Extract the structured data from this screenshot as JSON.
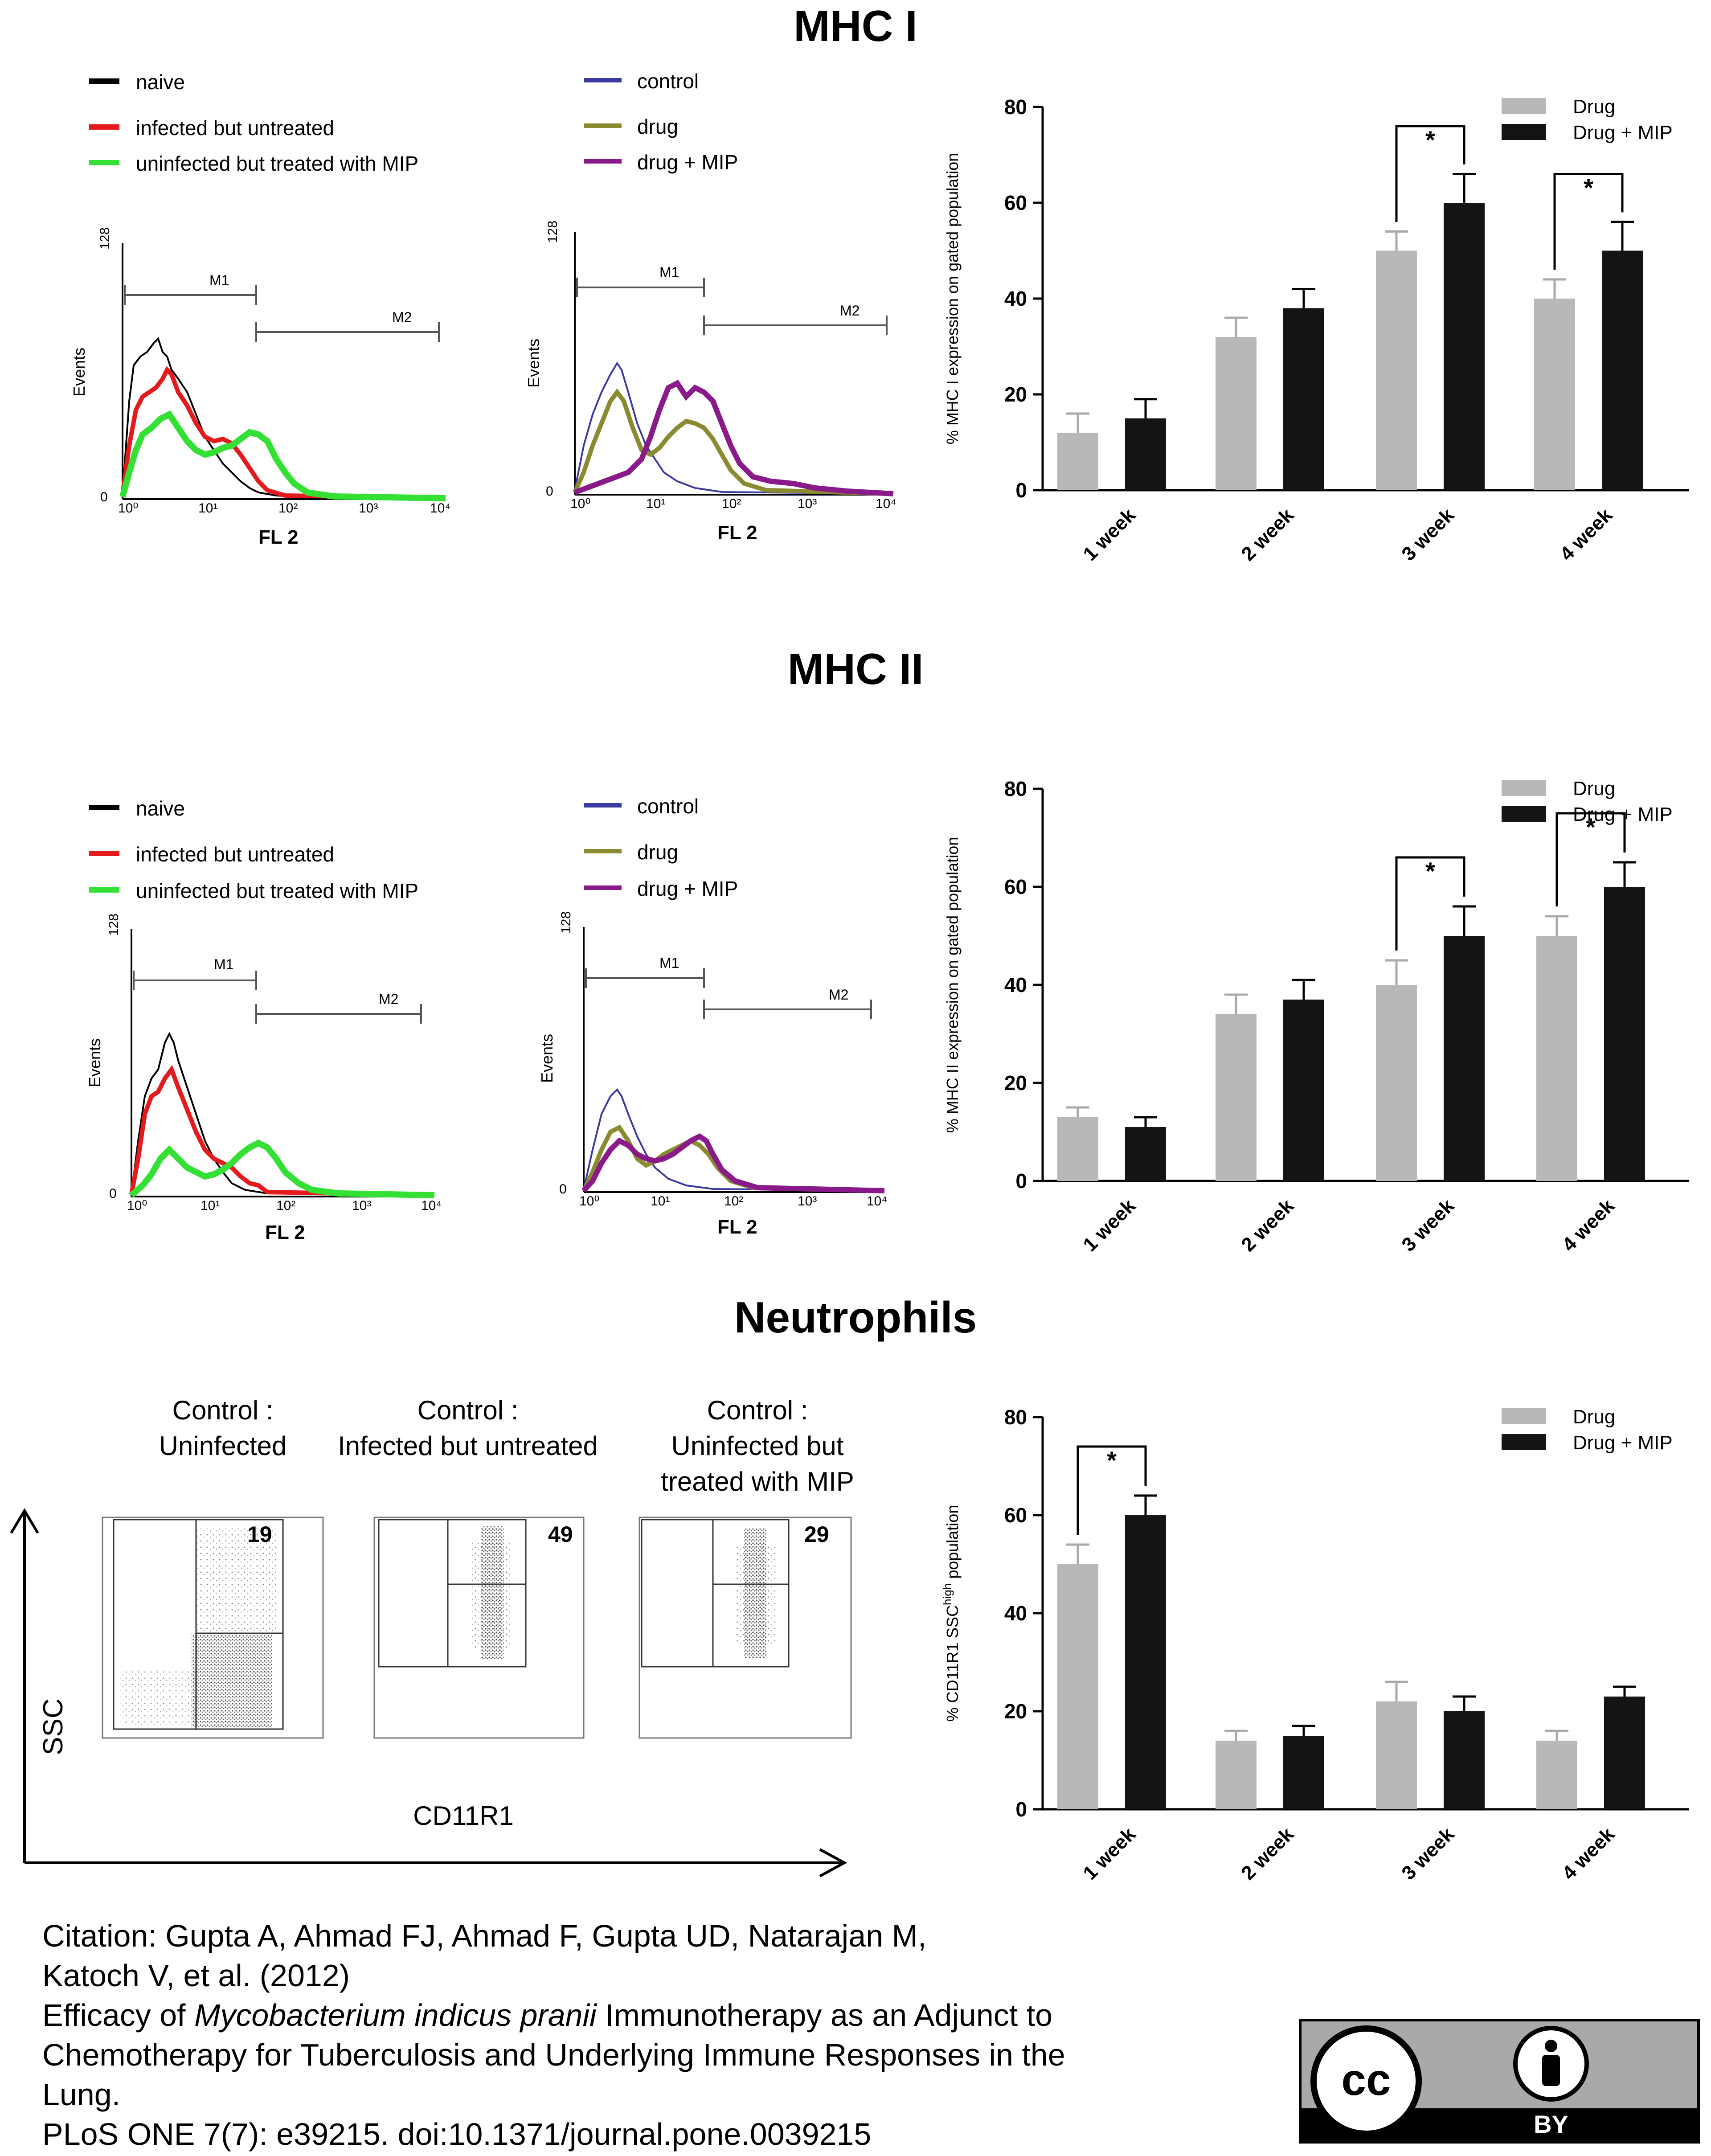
{
  "sections": {
    "mhc1": "MHC I",
    "mhc2": "MHC II",
    "neutrophils": "Neutrophils"
  },
  "colors": {
    "naive": "#000000",
    "infected": "#e41a1c",
    "uninfected_mip": "#33e033",
    "control": "#3a3aa0",
    "drug": "#8a8a30",
    "drug_mip": "#8a1a8a",
    "bar_drug": "#b8b8b8",
    "bar_drug_mip": "#141414"
  },
  "histograms": {
    "legend_left": [
      "naive",
      "infected but untreated",
      "uninfected but treated with MIP"
    ],
    "legend_right": [
      "control",
      "drug",
      "drug + MIP"
    ],
    "x_label": "FL 2",
    "y_label": "Events",
    "y_max_tick": "128",
    "y_min_tick": "0",
    "x_ticks": [
      "10⁰",
      "10¹",
      "10²",
      "10³",
      "10⁴"
    ],
    "gate1": "M1",
    "gate2": "M2"
  },
  "neutrophils": {
    "panels": [
      {
        "title_line1": "Control :",
        "title_line2": "Uninfected",
        "value": "19"
      },
      {
        "title_line1": "Control :",
        "title_line2": "Infected but untreated",
        "value": "49"
      },
      {
        "title_line1": "Control :",
        "title_line2": "Uninfected but",
        "title_line3": "treated  with MIP",
        "value": "29"
      }
    ],
    "y_axis": "SSC",
    "x_axis": "CD11R1"
  },
  "chart_data": [
    {
      "type": "bar",
      "title": "MHC I",
      "categories": [
        "1 week",
        "2 week",
        "3 week",
        "4 week"
      ],
      "series": [
        {
          "name": "Drug",
          "values": [
            12,
            32,
            50,
            40
          ],
          "errors": [
            4,
            4,
            4,
            4
          ]
        },
        {
          "name": "Drug + MIP",
          "values": [
            15,
            38,
            60,
            50
          ],
          "errors": [
            4,
            4,
            6,
            6
          ]
        }
      ],
      "ylabel": "% MHC I expression on gated population",
      "ylim": [
        0,
        80
      ],
      "yticks": [
        "0",
        "20",
        "40",
        "60",
        "80"
      ],
      "significance": [
        "3 week",
        "4 week"
      ],
      "sig_mark": "*",
      "legend": "top-right"
    },
    {
      "type": "bar",
      "title": "MHC II",
      "categories": [
        "1 week",
        "2 week",
        "3 week",
        "4 week"
      ],
      "series": [
        {
          "name": "Drug",
          "values": [
            13,
            34,
            40,
            50
          ],
          "errors": [
            2,
            4,
            5,
            4
          ]
        },
        {
          "name": "Drug + MIP",
          "values": [
            11,
            37,
            50,
            60
          ],
          "errors": [
            2,
            4,
            6,
            5
          ]
        }
      ],
      "ylabel": "% MHC II expression on gated population",
      "ylim": [
        0,
        80
      ],
      "yticks": [
        "0",
        "20",
        "40",
        "60",
        "80"
      ],
      "significance": [
        "3 week",
        "4 week"
      ],
      "sig_mark": "*",
      "legend": "top-right"
    },
    {
      "type": "bar",
      "title": "Neutrophils",
      "categories": [
        "1 week",
        "2 week",
        "3 week",
        "4 week"
      ],
      "series": [
        {
          "name": "Drug",
          "values": [
            50,
            14,
            22,
            14
          ],
          "errors": [
            4,
            2,
            4,
            2
          ]
        },
        {
          "name": "Drug + MIP",
          "values": [
            60,
            15,
            20,
            23
          ],
          "errors": [
            4,
            2,
            3,
            2
          ]
        }
      ],
      "ylabel": "% CD11R1 SSC high population",
      "ylabel_main": "% CD11R1 SSC",
      "ylabel_sup": "high",
      "ylabel_tail": " population",
      "ylim": [
        0,
        80
      ],
      "yticks": [
        "0",
        "20",
        "40",
        "60",
        "80"
      ],
      "significance": [
        "1 week"
      ],
      "sig_mark": "*",
      "legend": "top-right"
    }
  ],
  "citation": {
    "line1": "Citation: Gupta A, Ahmad FJ, Ahmad F, Gupta UD, Natarajan M,",
    "line2": "Katoch V, et al. (2012)",
    "line3_pre": "Efficacy of ",
    "line3_it": "Mycobacterium indicus pranii",
    "line3_post": " Immunotherapy as an Adjunct to",
    "line4": "Chemotherapy for Tuberculosis and Underlying Immune Responses in the",
    "line5": "Lung.",
    "line6": "PLoS ONE 7(7): e39215. doi:10.1371/journal.pone.0039215"
  },
  "license": {
    "cc": "cc",
    "by": "BY"
  }
}
